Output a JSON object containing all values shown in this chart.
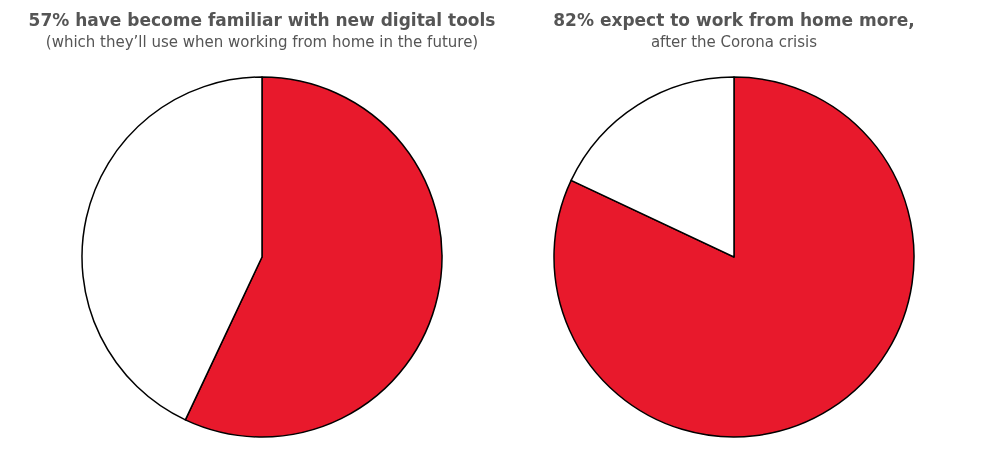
{
  "chart_data": [
    {
      "type": "pie",
      "title": "57% have become familiar with new digital tools",
      "subtitle": "(which they’ll use when working from home in the future)",
      "categories": [
        null,
        null
      ],
      "values": [
        57,
        43
      ],
      "colors": [
        "#e8192c",
        "#ffffff"
      ]
    },
    {
      "type": "pie",
      "title": "82% expect to work from home more,",
      "subtitle": "after the Corona crisis",
      "categories": [
        null,
        null
      ],
      "values": [
        82,
        18
      ],
      "colors": [
        "#e8192c",
        "#ffffff"
      ]
    }
  ]
}
